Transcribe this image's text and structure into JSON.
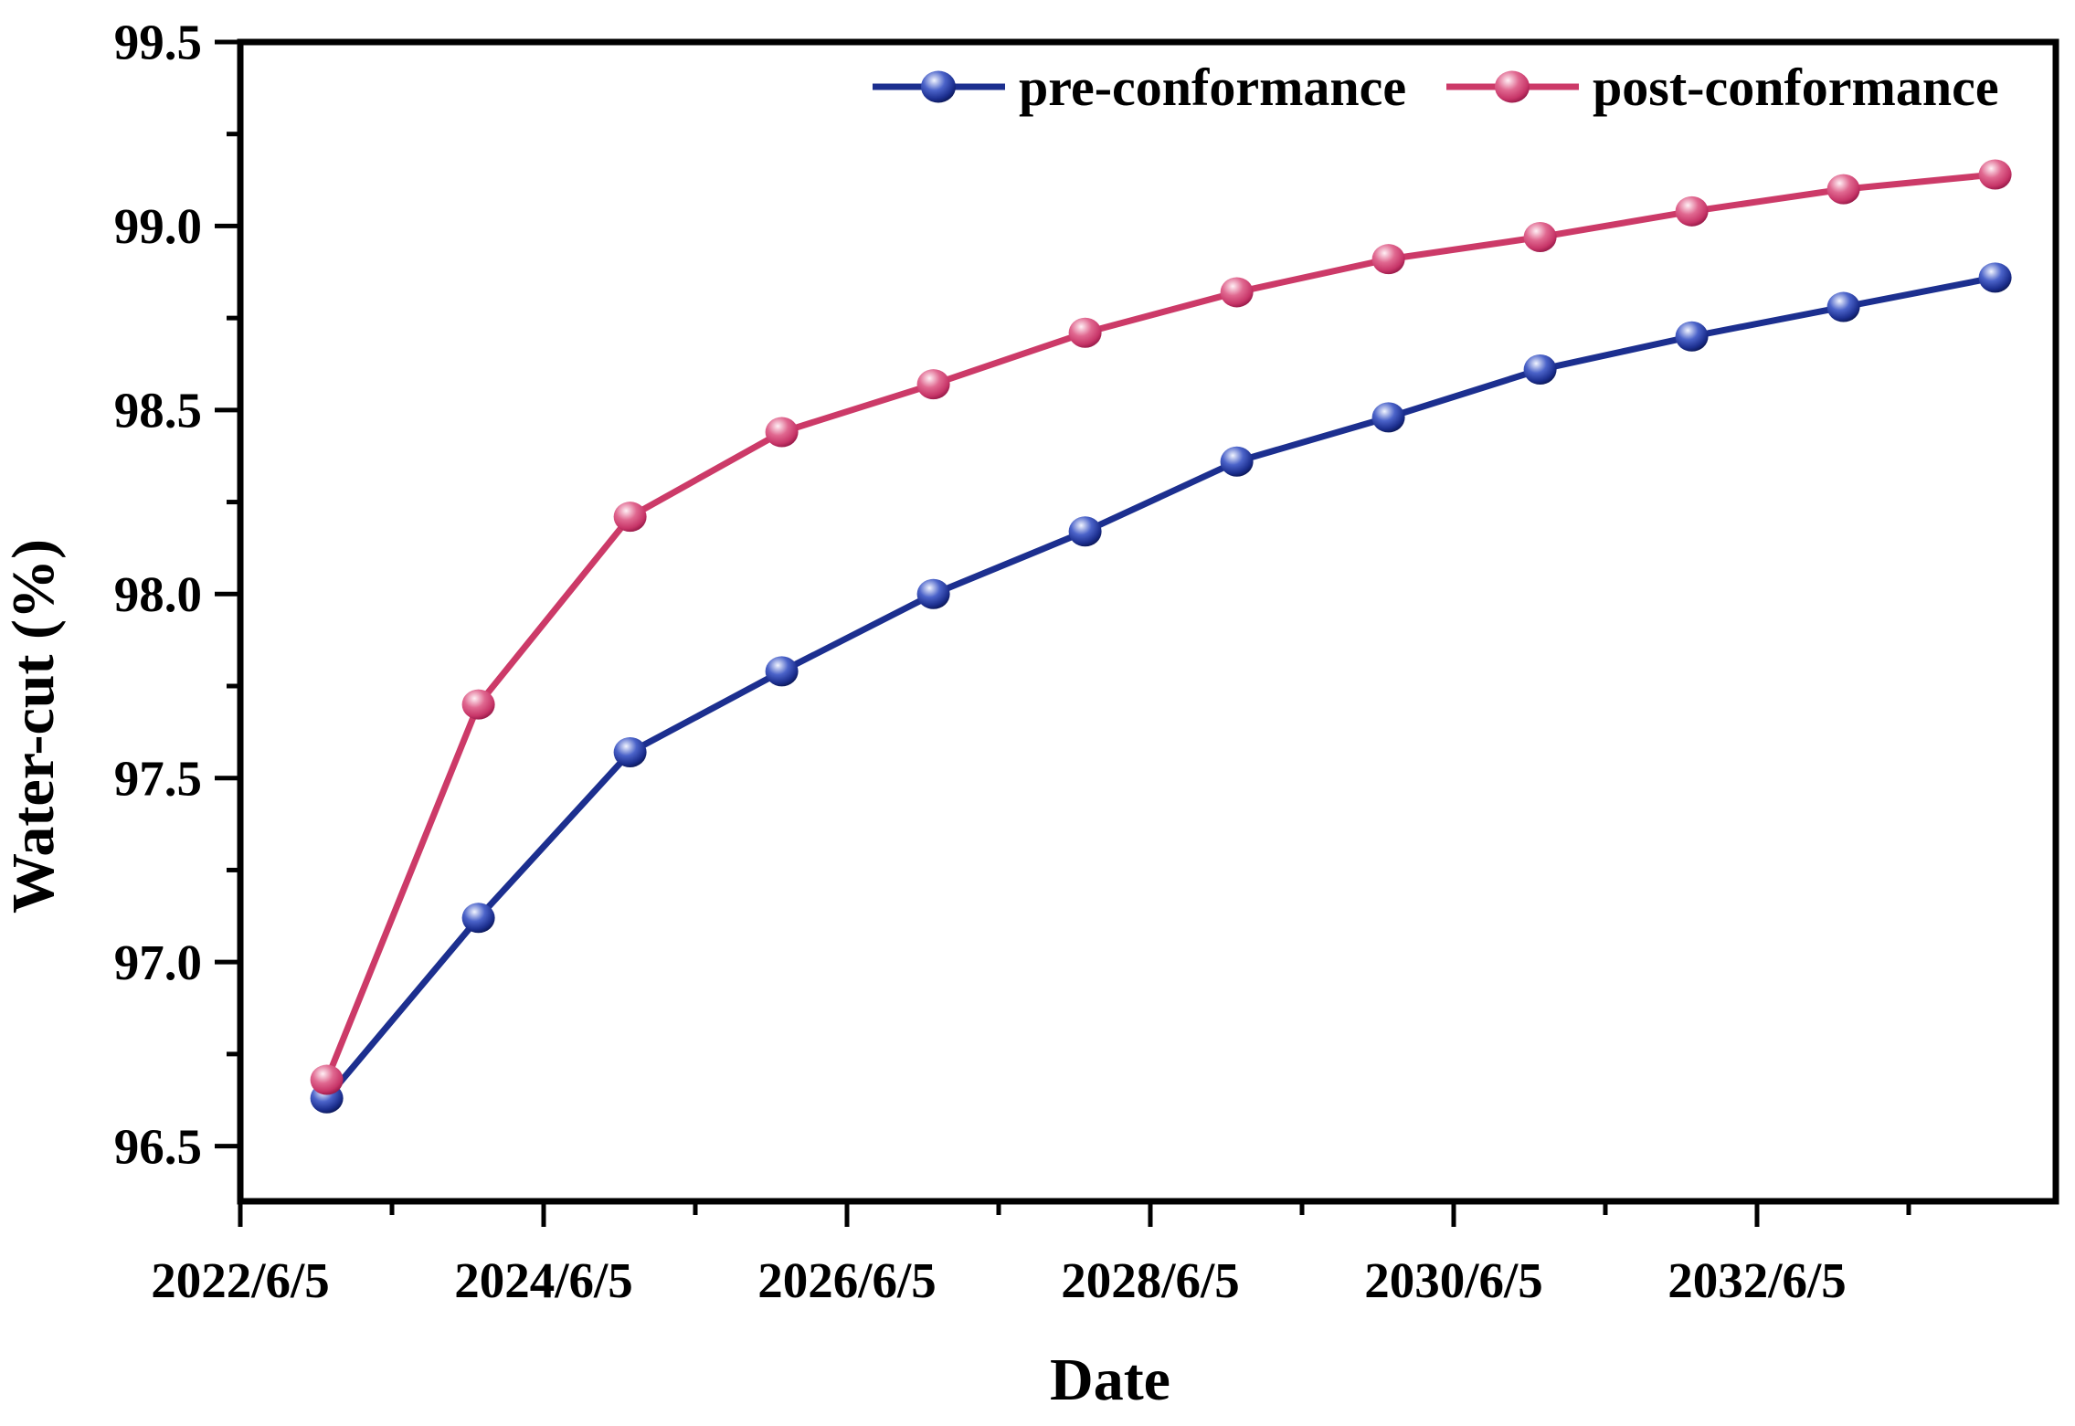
{
  "chart_data": {
    "type": "line",
    "title": "",
    "xlabel": "Date",
    "ylabel": "Water-cut (%)",
    "grid": false,
    "legend_position": "top-inside",
    "x_axis": {
      "unit": "decimal year",
      "min": 2022.43,
      "max": 2034.4,
      "major_ticks": [
        2022.43,
        2024.43,
        2026.43,
        2028.43,
        2030.43,
        2032.43
      ],
      "major_tick_labels": [
        "2022/6/5",
        "2024/6/5",
        "2026/6/5",
        "2028/6/5",
        "2030/6/5",
        "2032/6/5"
      ],
      "minor_ticks": [
        2023.43,
        2025.43,
        2027.43,
        2029.43,
        2031.43,
        2033.43
      ]
    },
    "y_axis": {
      "min": 96.35,
      "max": 99.5,
      "major_ticks": [
        96.5,
        97.0,
        97.5,
        98.0,
        98.5,
        99.0,
        99.5
      ],
      "major_tick_labels": [
        "96.5",
        "97.0",
        "97.5",
        "98.0",
        "98.5",
        "99.0",
        "99.5"
      ],
      "minor_ticks": [
        96.75,
        97.25,
        97.75,
        98.25,
        98.75,
        99.25
      ]
    },
    "x_years": [
      2023,
      2024,
      2025,
      2026,
      2027,
      2028,
      2029,
      2030,
      2031,
      2032,
      2033,
      2034
    ],
    "series": [
      {
        "name": "pre-conformance",
        "color": "#1c2f8f",
        "marker_gradient": [
          "#f2f5ff",
          "#4b63c9",
          "#1c2f8f",
          "#0a1550"
        ],
        "values": [
          96.63,
          97.12,
          97.57,
          97.79,
          98.0,
          98.17,
          98.36,
          98.48,
          98.61,
          98.7,
          98.78,
          98.86
        ]
      },
      {
        "name": "post-conformance",
        "color": "#cc3a68",
        "marker_gradient": [
          "#fff0f5",
          "#e06890",
          "#c73568",
          "#8f1543"
        ],
        "values": [
          96.68,
          97.7,
          98.21,
          98.44,
          98.57,
          98.71,
          98.82,
          98.91,
          98.97,
          99.04,
          99.1,
          99.14
        ]
      }
    ]
  }
}
